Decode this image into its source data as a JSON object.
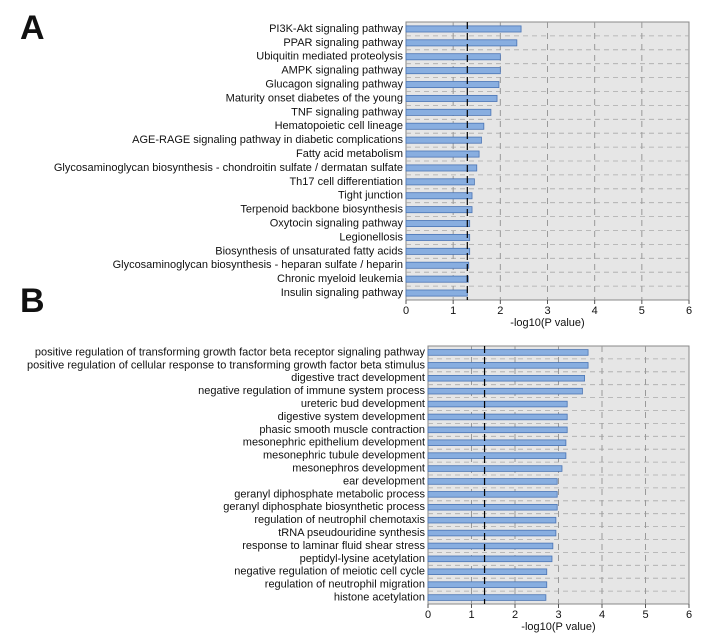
{
  "chart_data": [
    {
      "type": "bar",
      "orientation": "horizontal",
      "panel": "A",
      "x_label": "-log10(P value)",
      "categories": [
        "PI3K-Akt signaling pathway",
        "PPAR signaling pathway",
        "Ubiquitin mediated proteolysis",
        "AMPK signaling pathway",
        "Glucagon signaling pathway",
        "Maturity onset diabetes of the young",
        "TNF signaling pathway",
        "Hematopoietic cell lineage",
        "AGE-RAGE signaling pathway in diabetic complications",
        "Fatty acid metabolism",
        "Glycosaminoglycan biosynthesis - chondroitin sulfate / dermatan sulfate",
        "Th17 cell differentiation",
        "Tight junction",
        "Terpenoid backbone biosynthesis",
        "Oxytocin signaling pathway",
        "Legionellosis",
        "Biosynthesis of unsaturated fatty acids",
        "Glycosaminoglycan biosynthesis - heparan sulfate / heparin",
        "Chronic myeloid leukemia",
        "Insulin signaling pathway"
      ],
      "values": [
        2.44,
        2.35,
        2.0,
        2.0,
        1.97,
        1.93,
        1.8,
        1.65,
        1.6,
        1.55,
        1.5,
        1.45,
        1.4,
        1.4,
        1.35,
        1.35,
        1.35,
        1.33,
        1.32,
        1.3
      ],
      "color": "#88aee0",
      "threshold": 1.3,
      "xlim": [
        0,
        6
      ],
      "xticks": [
        0,
        1,
        2,
        3,
        4,
        5,
        6
      ],
      "grid": true
    },
    {
      "type": "bar",
      "orientation": "horizontal",
      "panel": "B",
      "x_label": "-log10(P value)",
      "categories": [
        "positive regulation of transforming growth factor beta receptor signaling pathway",
        "positive regulation of cellular response to transforming growth factor beta stimulus",
        "digestive tract development",
        "negative regulation of immune system process",
        "ureteric bud development",
        "digestive system development",
        "phasic smooth muscle contraction",
        "mesonephric epithelium development",
        "mesonephric tubule development",
        "mesonephros development",
        "ear development",
        "geranyl diphosphate metabolic process",
        "geranyl diphosphate biosynthetic process",
        "regulation of neutrophil chemotaxis",
        "tRNA pseudouridine synthesis",
        "response to laminar fluid shear stress",
        "peptidyl-lysine acetylation",
        "negative regulation of meiotic cell cycle",
        "regulation of neutrophil migration",
        "histone acetylation"
      ],
      "values": [
        3.68,
        3.68,
        3.6,
        3.55,
        3.2,
        3.2,
        3.2,
        3.17,
        3.17,
        3.08,
        2.97,
        2.97,
        2.97,
        2.94,
        2.94,
        2.87,
        2.85,
        2.73,
        2.73,
        2.71
      ],
      "color": "#88aee0",
      "threshold": 1.3,
      "xlim": [
        0,
        6
      ],
      "xticks": [
        0,
        1,
        2,
        3,
        4,
        5,
        6
      ],
      "grid": true
    }
  ]
}
